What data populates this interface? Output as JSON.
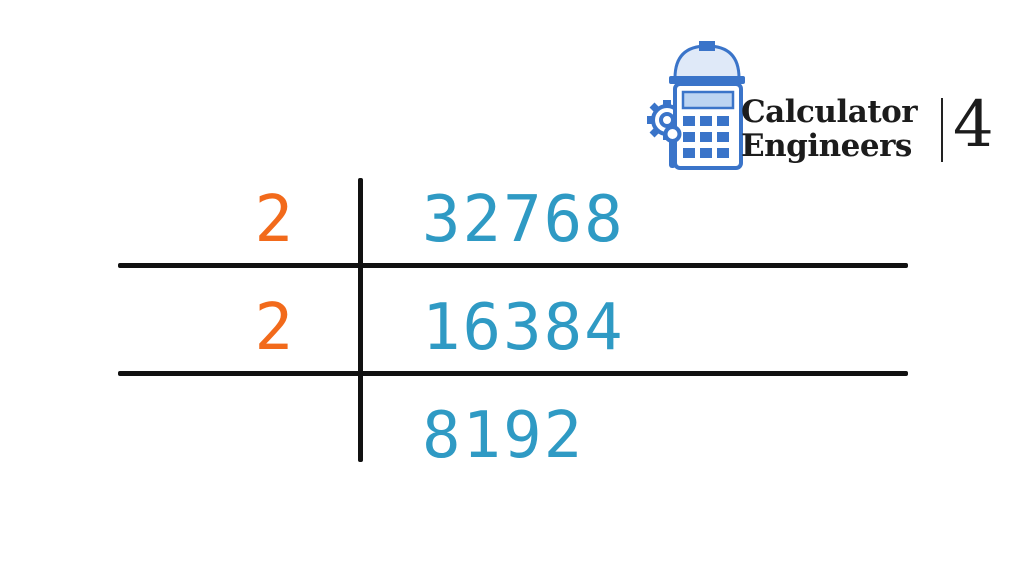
{
  "division": {
    "rows": [
      {
        "divisor": "2",
        "value": "32768"
      },
      {
        "divisor": "2",
        "value": "16384"
      },
      {
        "divisor": "",
        "value": "8192"
      }
    ]
  },
  "logo": {
    "line1": "Calculator",
    "line2": "Engineers",
    "number": "4",
    "icon": "calculator-hardhat-gear-icon"
  },
  "colors": {
    "divisor": "#f26a1b",
    "quotient": "#2f9ac4",
    "lines": "#111111",
    "logo_blue": "#3a74c9"
  }
}
